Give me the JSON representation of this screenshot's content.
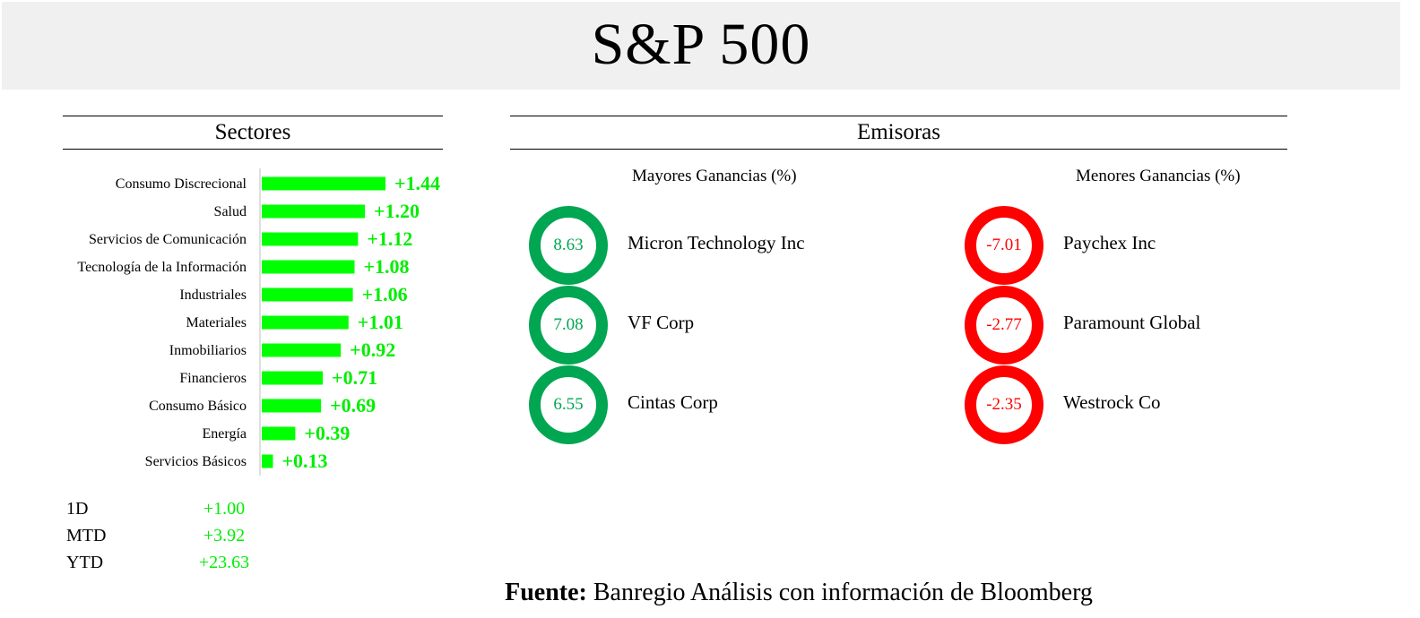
{
  "title": "S&P 500",
  "sectores": {
    "header": "Sectores"
  },
  "emisoras": {
    "header": "Emisoras",
    "gainers_header": "Mayores Ganancias (%)",
    "losers_header": "Menores Ganancias (%)",
    "gainers": [
      {
        "value": "8.63",
        "name": "Micron Technology Inc"
      },
      {
        "value": "7.08",
        "name": "VF Corp"
      },
      {
        "value": "6.55",
        "name": "Cintas Corp"
      }
    ],
    "losers": [
      {
        "value": "-7.01",
        "name": "Paychex Inc"
      },
      {
        "value": "-2.77",
        "name": "Paramount Global"
      },
      {
        "value": "-2.35",
        "name": "Westrock Co"
      }
    ],
    "gain_color": "#00a651",
    "loss_color": "#ff0000"
  },
  "summary": [
    {
      "label": "1D",
      "value": "+1.00"
    },
    {
      "label": "MTD",
      "value": "+3.92"
    },
    {
      "label": "YTD",
      "value": "+23.63"
    }
  ],
  "source": {
    "prefix": "Fuente:",
    "text": " Banregio Análisis con información de Bloomberg"
  },
  "chart_data": {
    "type": "bar",
    "orientation": "horizontal",
    "categories": [
      "Consumo Discrecional",
      "Salud",
      "Servicios de Comunicación",
      "Tecnología de la Información",
      "Industriales",
      "Materiales",
      "Inmobiliarios",
      "Financieros",
      "Consumo Básico",
      "Energía",
      "Servicios Básicos"
    ],
    "values": [
      1.44,
      1.2,
      1.12,
      1.08,
      1.06,
      1.01,
      0.92,
      0.71,
      0.69,
      0.39,
      0.13
    ],
    "labels": [
      "+1.44",
      "+1.20",
      "+1.12",
      "+1.08",
      "+1.06",
      "+1.01",
      "+0.92",
      "+0.71",
      "+0.69",
      "+0.39",
      "+0.13"
    ],
    "bar_color": "#00ff00",
    "label_color": "#00ee00",
    "grid": false
  }
}
